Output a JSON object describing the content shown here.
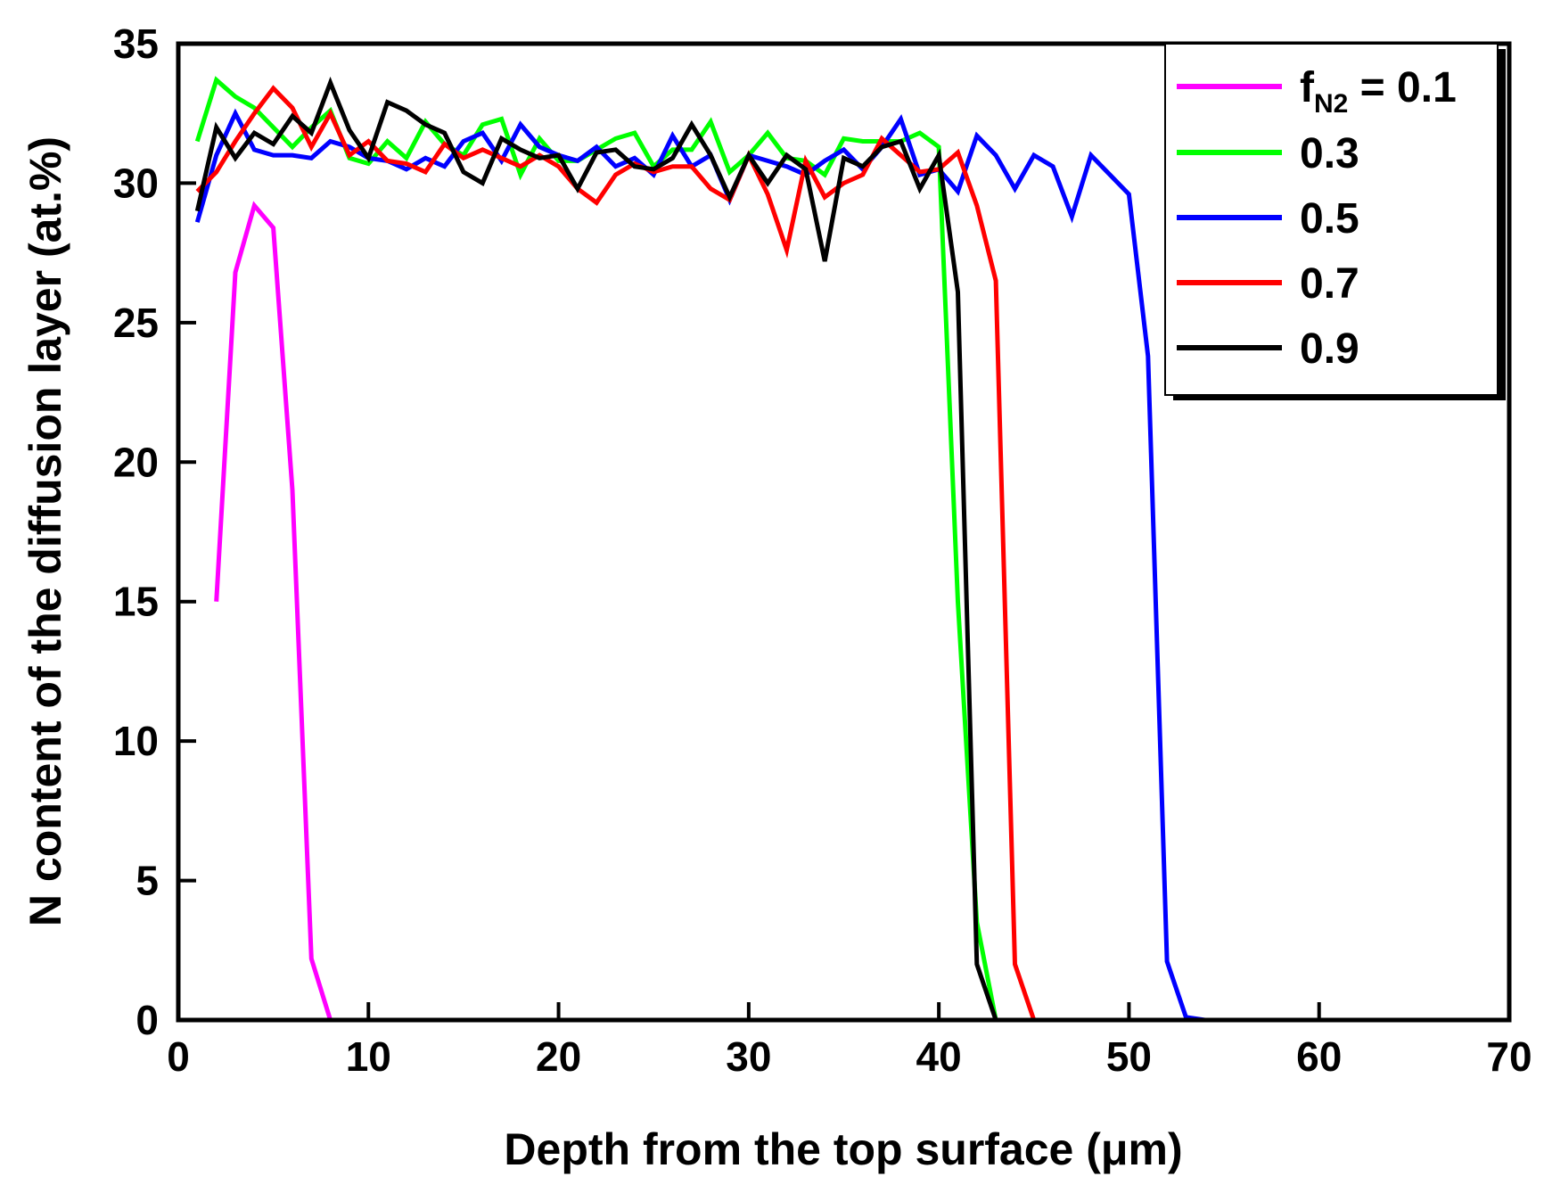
{
  "chart_data": {
    "type": "line",
    "title": "",
    "xlabel": "Depth from the top surface (μm)",
    "ylabel": "N content of the diffusion layer (at.%)",
    "xlim": [
      0,
      70
    ],
    "ylim": [
      0,
      35
    ],
    "xticks": [
      0,
      10,
      20,
      30,
      40,
      50,
      60,
      70
    ],
    "yticks": [
      0,
      5,
      10,
      15,
      20,
      25,
      30,
      35
    ],
    "legend_position": "top-right",
    "legend_label_prefix": "f",
    "legend_label_subscript": "N2",
    "legend_label_suffix": " = ",
    "series": [
      {
        "name": "0.1",
        "color": "#ff00ff",
        "x": [
          2,
          3,
          4,
          5,
          6,
          7,
          8,
          37
        ],
        "y": [
          15.0,
          26.8,
          29.2,
          28.4,
          19.0,
          2.2,
          0.0,
          0.0
        ]
      },
      {
        "name": "0.3",
        "color": "#00ff00",
        "x": [
          1,
          2,
          3,
          4,
          5,
          6,
          7,
          8,
          9,
          10,
          11,
          12,
          13,
          14,
          15,
          16,
          17,
          18,
          19,
          20,
          21,
          22,
          23,
          24,
          25,
          26,
          27,
          28,
          29,
          30,
          31,
          32,
          33,
          34,
          35,
          36,
          37,
          38,
          39,
          40,
          41,
          42,
          43,
          61
        ],
        "y": [
          31.5,
          33.7,
          33.1,
          32.7,
          32.0,
          31.3,
          32.0,
          32.6,
          30.9,
          30.7,
          31.5,
          30.9,
          32.2,
          31.4,
          31.0,
          32.1,
          32.3,
          30.3,
          31.6,
          30.8,
          30.8,
          31.2,
          31.6,
          31.8,
          30.6,
          31.2,
          31.2,
          32.2,
          30.4,
          31.0,
          31.8,
          30.9,
          30.8,
          30.3,
          31.6,
          31.5,
          31.5,
          31.5,
          31.8,
          31.3,
          15.0,
          3.5,
          0.0,
          0.0
        ]
      },
      {
        "name": "0.5",
        "color": "#0000ff",
        "x": [
          1,
          2,
          3,
          4,
          5,
          6,
          7,
          8,
          9,
          10,
          11,
          12,
          13,
          14,
          15,
          16,
          17,
          18,
          19,
          20,
          21,
          22,
          23,
          24,
          25,
          26,
          27,
          28,
          29,
          30,
          31,
          32,
          33,
          34,
          35,
          36,
          37,
          38,
          39,
          40,
          41,
          42,
          43,
          44,
          45,
          46,
          47,
          48,
          49,
          50,
          51,
          52,
          53,
          54,
          70
        ],
        "y": [
          28.6,
          31.0,
          32.5,
          31.2,
          31.0,
          31.0,
          30.9,
          31.5,
          31.3,
          30.9,
          30.8,
          30.5,
          30.9,
          30.6,
          31.5,
          31.8,
          30.8,
          32.1,
          31.3,
          31.0,
          30.8,
          31.3,
          30.6,
          30.9,
          30.3,
          31.7,
          30.6,
          31.0,
          29.4,
          31.0,
          30.8,
          30.6,
          30.3,
          30.8,
          31.2,
          30.5,
          31.3,
          32.3,
          30.3,
          30.5,
          29.7,
          31.7,
          31.0,
          29.8,
          31.0,
          30.6,
          28.8,
          31.0,
          30.3,
          29.6,
          23.8,
          2.1,
          0.1,
          0.0,
          0.0
        ]
      },
      {
        "name": "0.7",
        "color": "#ff0000",
        "x": [
          1,
          2,
          3,
          4,
          5,
          6,
          7,
          8,
          9,
          10,
          11,
          12,
          13,
          14,
          15,
          16,
          17,
          18,
          19,
          20,
          21,
          22,
          23,
          24,
          25,
          26,
          27,
          28,
          29,
          30,
          31,
          32,
          33,
          34,
          35,
          36,
          37,
          38,
          39,
          40,
          41,
          42,
          43,
          44,
          45
        ],
        "y": [
          29.7,
          30.4,
          31.5,
          32.5,
          33.4,
          32.7,
          31.3,
          32.5,
          31.0,
          31.5,
          30.8,
          30.7,
          30.4,
          31.4,
          30.9,
          31.2,
          30.9,
          30.6,
          31.0,
          30.6,
          29.8,
          29.3,
          30.3,
          30.7,
          30.4,
          30.6,
          30.6,
          29.8,
          29.4,
          31.0,
          29.6,
          27.6,
          30.8,
          29.5,
          30.0,
          30.3,
          31.6,
          31.0,
          30.4,
          30.5,
          31.1,
          29.2,
          26.5,
          2.0,
          0.0
        ]
      },
      {
        "name": "0.9",
        "color": "#000000",
        "x": [
          1,
          2,
          3,
          4,
          5,
          6,
          7,
          8,
          9,
          10,
          11,
          12,
          13,
          14,
          15,
          16,
          17,
          18,
          19,
          20,
          21,
          22,
          23,
          24,
          25,
          26,
          27,
          28,
          29,
          30,
          31,
          32,
          33,
          34,
          35,
          36,
          37,
          38,
          39,
          40,
          41,
          42,
          43
        ],
        "y": [
          29.0,
          32.0,
          30.9,
          31.8,
          31.4,
          32.4,
          31.8,
          33.6,
          31.9,
          30.9,
          32.9,
          32.6,
          32.1,
          31.8,
          30.4,
          30.0,
          31.6,
          31.2,
          30.9,
          31.0,
          29.8,
          31.1,
          31.2,
          30.6,
          30.5,
          30.9,
          32.1,
          31.0,
          29.5,
          31.0,
          30.0,
          31.0,
          30.5,
          27.2,
          30.9,
          30.6,
          31.3,
          31.5,
          29.8,
          31.0,
          26.1,
          2.0,
          0.0
        ]
      }
    ]
  }
}
